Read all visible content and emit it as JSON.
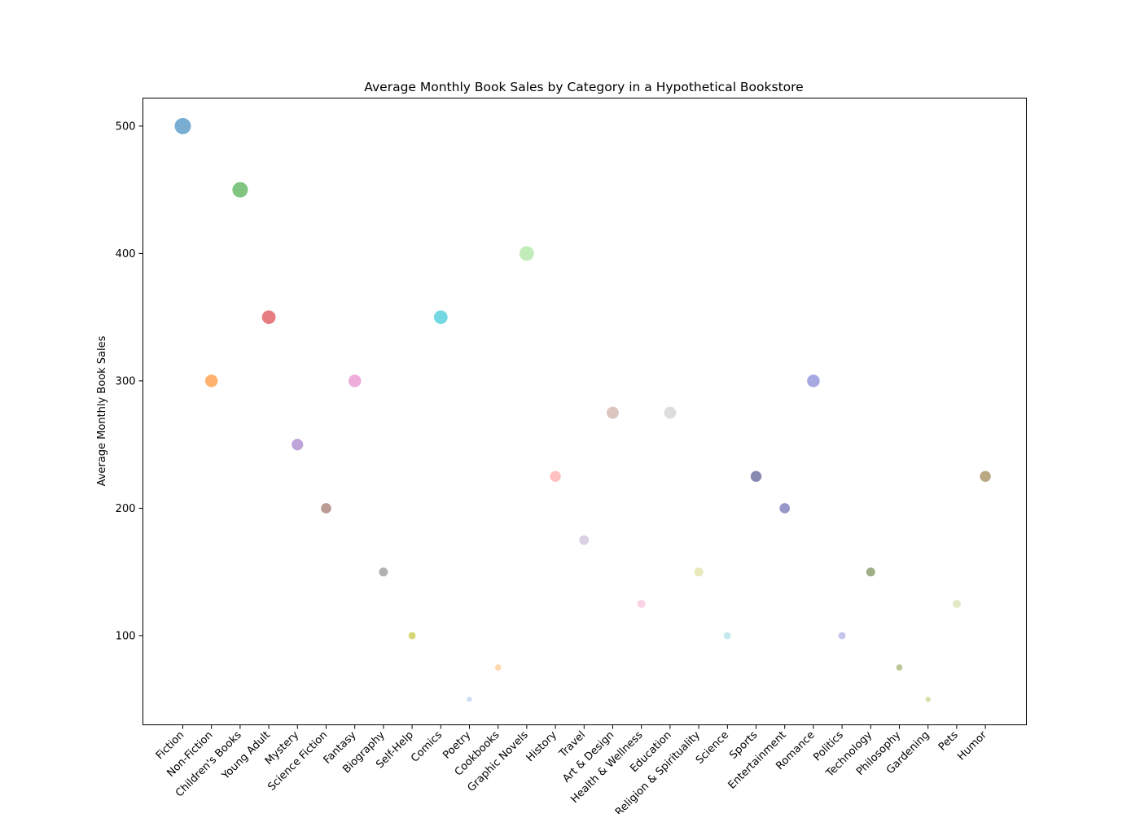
{
  "chart_data": {
    "type": "scatter",
    "title": "Average Monthly Book Sales by Category in a Hypothetical Bookstore",
    "xlabel": "",
    "ylabel": "Average Monthly Book Sales",
    "ylim": [
      30,
      522
    ],
    "yticks": [
      100,
      200,
      300,
      400,
      500
    ],
    "grid": false,
    "categories": [
      "Fiction",
      "Non-Fiction",
      "Children's Books",
      "Young Adult",
      "Mystery",
      "Science Fiction",
      "Fantasy",
      "Biography",
      "Self-Help",
      "Comics",
      "Poetry",
      "Cookbooks",
      "Graphic Novels",
      "History",
      "Travel",
      "Art & Design",
      "Health & Wellness",
      "Education",
      "Religion & Spirituality",
      "Science",
      "Sports",
      "Entertainment",
      "Romance",
      "Politics",
      "Technology",
      "Philosophy",
      "Gardening",
      "Pets",
      "Humor"
    ],
    "values": [
      500,
      300,
      450,
      350,
      250,
      200,
      300,
      150,
      100,
      350,
      50,
      75,
      400,
      225,
      175,
      275,
      125,
      275,
      150,
      100,
      225,
      200,
      300,
      100,
      150,
      75,
      50,
      125,
      225
    ],
    "colors": [
      "#1f77b4",
      "#ff7f0e",
      "#2ca02c",
      "#d62728",
      "#9467bd",
      "#8c564b",
      "#e377c2",
      "#7f7f7f",
      "#bcbd22",
      "#17becf",
      "#aec7e8",
      "#ffbb78",
      "#98df8a",
      "#ff9896",
      "#c5b0d5",
      "#c49c94",
      "#f7b6d2",
      "#c7c7c7",
      "#dbdb8d",
      "#9edae5",
      "#393b79",
      "#5254a3",
      "#6b6ecf",
      "#9c9ede",
      "#637939",
      "#8ca252",
      "#b5cf6b",
      "#cedb9c",
      "#8c6d31"
    ]
  }
}
